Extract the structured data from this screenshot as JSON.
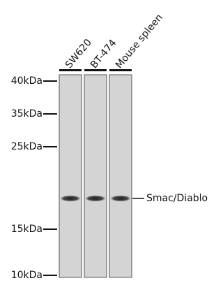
{
  "lanes": [
    "SW620",
    "BT-474",
    "Mouse spleen"
  ],
  "markers": [
    "40kDa",
    "35kDa",
    "25kDa",
    "15kDa",
    "10kDa"
  ],
  "band_label": "Smac/Diablo"
}
